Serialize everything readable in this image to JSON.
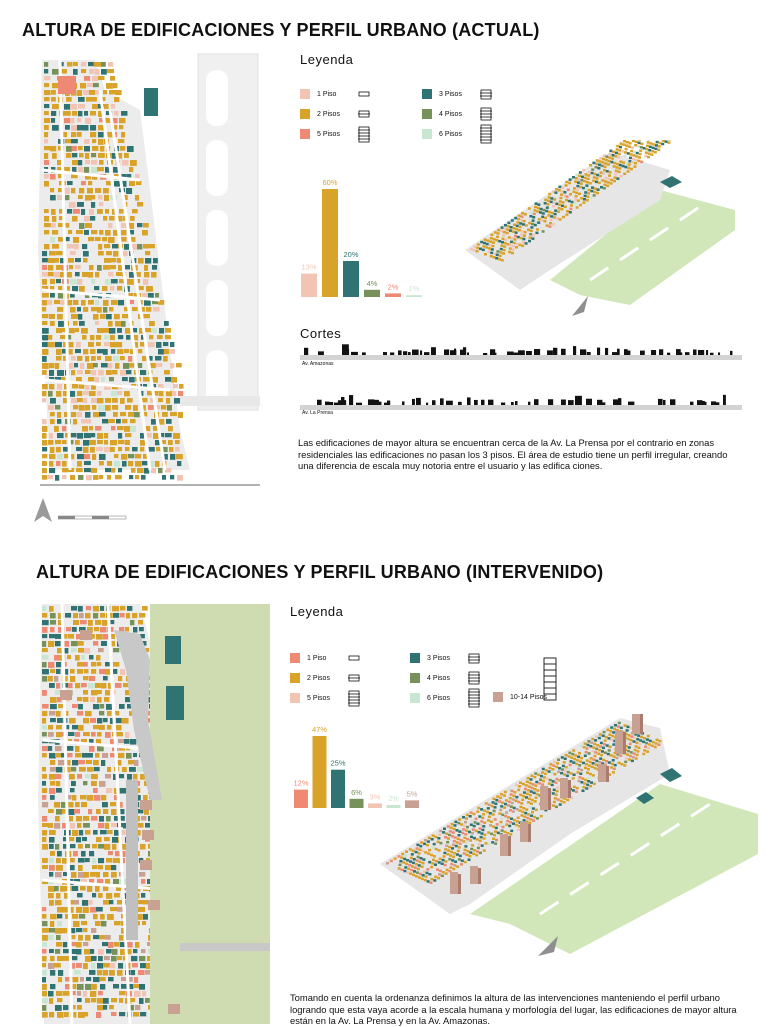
{
  "section1": {
    "title": "ALTURA DE EDIFICACIONES Y PERFIL URBANO (ACTUAL)",
    "legend_title": "Leyenda",
    "legend": [
      {
        "label": "1 Piso",
        "color": "#f2c4b4",
        "icon": "1-floor-building-icon"
      },
      {
        "label": "2 Pisos",
        "color": "#d9a32a",
        "icon": "2-floor-building-icon"
      },
      {
        "label": "5 Pisos",
        "color": "#ee8a74",
        "icon": "5-floor-building-icon"
      },
      {
        "label": "3 Pisos",
        "color": "#2f7373",
        "icon": "3-floor-building-icon"
      },
      {
        "label": "4 Pisos",
        "color": "#76925a",
        "icon": "4-floor-building-icon"
      },
      {
        "label": "6 Pisos",
        "color": "#c9e6d3",
        "icon": "6-floor-building-icon"
      }
    ],
    "bars": [
      {
        "label": "13%",
        "value": 13,
        "color": "#f2c4b4"
      },
      {
        "label": "60%",
        "value": 60,
        "color": "#d9a32a"
      },
      {
        "label": "20%",
        "value": 20,
        "color": "#2f7373"
      },
      {
        "label": "4%",
        "value": 4,
        "color": "#76925a"
      },
      {
        "label": "2%",
        "value": 2,
        "color": "#ee8a74"
      },
      {
        "label": "1%",
        "value": 1,
        "color": "#c9e6d3"
      }
    ],
    "cortes_title": "Cortes",
    "corte_labels": [
      "Av. Amazonas",
      "Av. La Prensa"
    ],
    "paragraph": "Las edificaciones de mayor altura se encuentran cerca de la Av. La Prensa por el contrario en zonas residenciales las edificaciones no pasan los 3 pisos. El área de estudio tiene un perfil irregular, creando una diferencia de escala muy notoria entre el usuario y las edifica ciones."
  },
  "section2": {
    "title": "ALTURA DE EDIFICACIONES Y PERFIL URBANO (INTERVENIDO)",
    "legend_title": "Leyenda",
    "legend": [
      {
        "label": "1 Piso",
        "color": "#ee8a74",
        "icon": "1-floor-building-icon"
      },
      {
        "label": "2 Pisos",
        "color": "#d9a32a",
        "icon": "2-floor-building-icon"
      },
      {
        "label": "5 Pisos",
        "color": "#f2c4b4",
        "icon": "5-floor-building-icon"
      },
      {
        "label": "3 Pisos",
        "color": "#2f7373",
        "icon": "3-floor-building-icon"
      },
      {
        "label": "4 Pisos",
        "color": "#76925a",
        "icon": "4-floor-building-icon"
      },
      {
        "label": "6 Pisos",
        "color": "#c9e6d3",
        "icon": "6-floor-building-icon"
      },
      {
        "label": "10-14 Pisos",
        "color": "#c9a193",
        "icon": "tall-building-icon"
      }
    ],
    "bars": [
      {
        "label": "12%",
        "value": 12,
        "color": "#ee8a74"
      },
      {
        "label": "47%",
        "value": 47,
        "color": "#d9a32a"
      },
      {
        "label": "25%",
        "value": 25,
        "color": "#2f7373"
      },
      {
        "label": "6%",
        "value": 6,
        "color": "#76925a"
      },
      {
        "label": "3%",
        "value": 3,
        "color": "#f2c4b4"
      },
      {
        "label": "2%",
        "value": 2,
        "color": "#c9e6d3"
      },
      {
        "label": "5%",
        "value": 5,
        "color": "#c9a193"
      }
    ],
    "paragraph": "Tomando en cuenta la ordenanza definimos la altura de las intervenciones manteniendo el perfil urbano logrando que esta vaya acorde a la escala humana y morfología del lugar, las edificaciones de mayor altura están en la Av. La Prensa y en la Av. Amazonas."
  }
}
